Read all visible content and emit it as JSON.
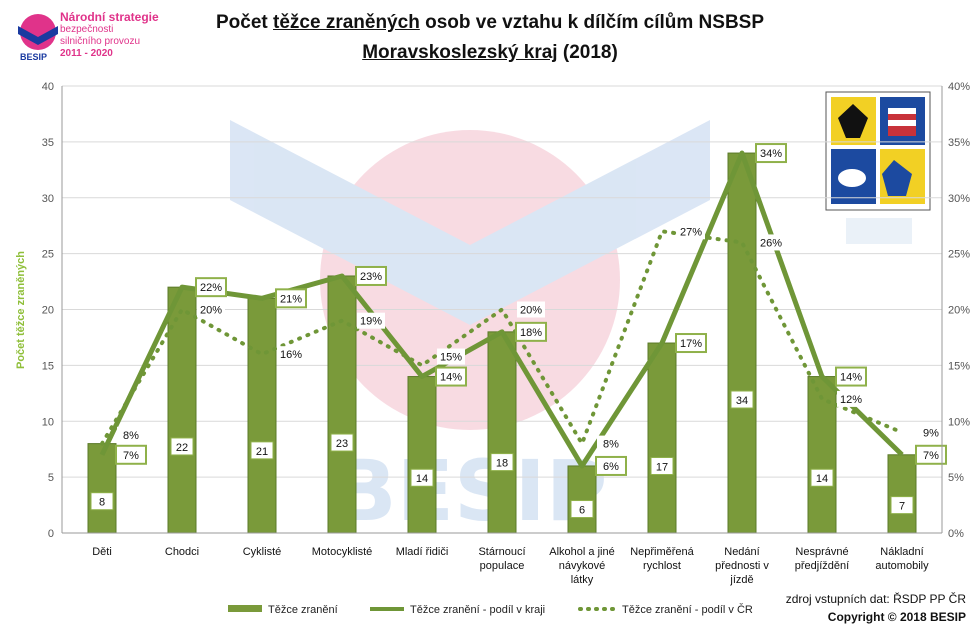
{
  "header": {
    "logo_line1": "Národní strategie",
    "logo_line2": "bezpečnosti",
    "logo_line3": "silničního provozu",
    "logo_years": "2011 - 2020",
    "logo_brand": "BESIP",
    "title_pre": "Počet ",
    "title_underlined": "těžce zraněných",
    "title_post": " osob ve vztahu k dílčím cílům NSBSP",
    "subtitle_underlined": "Moravskoslezský kraj",
    "subtitle_post": " (2018)"
  },
  "footer": {
    "source": "zdroj vstupních dat: ŘSDP PP ČR",
    "copyright": "Copyright © 2018  BESIP"
  },
  "colors": {
    "bar": "#7a9a3a",
    "bar_dark": "#5b7a28",
    "line": "#6f9637",
    "label_border": "#8fb14a",
    "axis_text": "#555555",
    "ylabel": "#8fbf3a"
  },
  "chart_data": {
    "type": "bar",
    "categories": [
      "Děti",
      "Chodci",
      "Cyklisté",
      "Motocyklisté",
      "Mladí řidiči",
      "Stárnoucí populace",
      "Alkohol a jiné návykové látky",
      "Nepřiměřená rychlost",
      "Nedání přednosti v jízdě",
      "Nesprávné předjíždění",
      "Nákladní automobily"
    ],
    "category_lines": [
      [
        "Děti"
      ],
      [
        "Chodci"
      ],
      [
        "Cyklisté"
      ],
      [
        "Motocyklisté"
      ],
      [
        "Mladí řidiči"
      ],
      [
        "Stárnoucí",
        "populace"
      ],
      [
        "Alkohol a jiné",
        "návykové",
        "látky"
      ],
      [
        "Nepřiměřená",
        "rychlost"
      ],
      [
        "Nedání",
        "přednosti v",
        "jízdě"
      ],
      [
        "Nesprávné",
        "předjíždění"
      ],
      [
        "Nákladní",
        "automobily"
      ]
    ],
    "ylabel": "Počet těžce zraněných",
    "ylim": [
      0,
      40
    ],
    "y_ticks": [
      0,
      5,
      10,
      15,
      20,
      25,
      30,
      35,
      40
    ],
    "y2lim": [
      0,
      40
    ],
    "y2_ticks": [
      "0%",
      "5%",
      "10%",
      "15%",
      "20%",
      "25%",
      "30%",
      "35%",
      "40%"
    ],
    "grid": true,
    "legend_position": "bottom",
    "series": [
      {
        "name": "Těžce zranění",
        "kind": "bar",
        "values": [
          8,
          22,
          21,
          23,
          14,
          18,
          6,
          17,
          34,
          14,
          7
        ]
      },
      {
        "name": "Těžce zranění - podíl v kraji",
        "kind": "line",
        "axis": "right",
        "values": [
          7,
          22,
          21,
          23,
          14,
          18,
          6,
          17,
          34,
          14,
          7
        ],
        "labels": [
          "7%",
          "22%",
          "21%",
          "23%",
          "14%",
          "18%",
          "6%",
          "17%",
          "34%",
          "14%",
          "7%"
        ]
      },
      {
        "name": "Těžce zranění - podíl v ČR",
        "kind": "dotted-line",
        "axis": "right",
        "values": [
          8,
          20,
          16,
          19,
          15,
          20,
          8,
          27,
          26,
          12,
          9
        ],
        "labels": [
          "8%",
          "20%",
          "16%",
          "19%",
          "15%",
          "20%",
          "8%",
          "27%",
          "26%",
          "12%",
          "9%"
        ]
      }
    ]
  }
}
